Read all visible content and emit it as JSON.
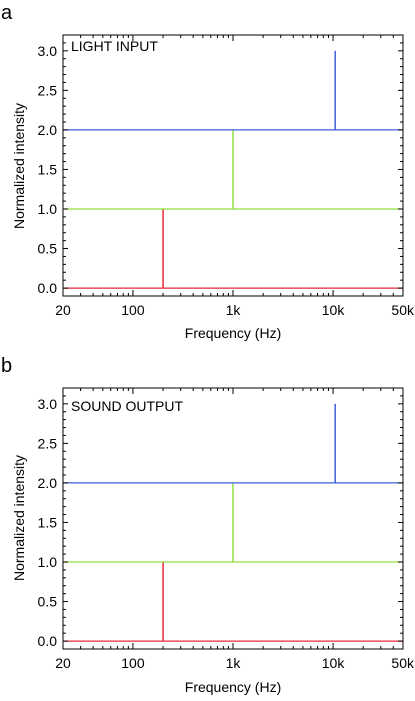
{
  "chart_data": [
    {
      "panel": "a",
      "type": "line",
      "inset_label": "LIGHT INPUT",
      "xlabel": "Frequency (Hz)",
      "ylabel": "Normalized intensity",
      "xscale": "log",
      "xlim": [
        20,
        50000
      ],
      "ylim": [
        -0.1,
        3.2
      ],
      "xtick_values": [
        20,
        100,
        1000,
        10000,
        50000
      ],
      "xtick_labels": [
        "20",
        "100",
        "1k",
        "10k",
        "50k"
      ],
      "ytick_values": [
        0.0,
        0.5,
        1.0,
        1.5,
        2.0,
        2.5,
        3.0
      ],
      "ytick_labels": [
        "0.0",
        "0.5",
        "1.0",
        "1.5",
        "2.0",
        "2.5",
        "3.0"
      ],
      "grid": false,
      "legend": "none",
      "series": [
        {
          "color": "#e8283a",
          "baseline": 0,
          "peak_x": 200,
          "peak_y": 1.0
        },
        {
          "color": "#8fe03c",
          "baseline": 1,
          "peak_x": 1000,
          "peak_y": 2.0
        },
        {
          "color": "#3f5fd8",
          "baseline": 2,
          "peak_x": 10500,
          "peak_y": 3.0
        }
      ]
    },
    {
      "panel": "b",
      "type": "line",
      "inset_label": "SOUND OUTPUT",
      "xlabel": "Frequency (Hz)",
      "ylabel": "Normalized intensity",
      "xscale": "log",
      "xlim": [
        20,
        50000
      ],
      "ylim": [
        -0.1,
        3.2
      ],
      "xtick_values": [
        20,
        100,
        1000,
        10000,
        50000
      ],
      "xtick_labels": [
        "20",
        "100",
        "1k",
        "10k",
        "50k"
      ],
      "ytick_values": [
        0.0,
        0.5,
        1.0,
        1.5,
        2.0,
        2.5,
        3.0
      ],
      "ytick_labels": [
        "0.0",
        "0.5",
        "1.0",
        "1.5",
        "2.0",
        "2.5",
        "3.0"
      ],
      "grid": false,
      "legend": "none",
      "series": [
        {
          "color": "#e8283a",
          "baseline": 0,
          "peak_x": 200,
          "peak_y": 1.0
        },
        {
          "color": "#8fe03c",
          "baseline": 1,
          "peak_x": 1000,
          "peak_y": 2.0
        },
        {
          "color": "#3f5fd8",
          "baseline": 2,
          "peak_x": 10500,
          "peak_y": 3.0
        }
      ]
    }
  ]
}
